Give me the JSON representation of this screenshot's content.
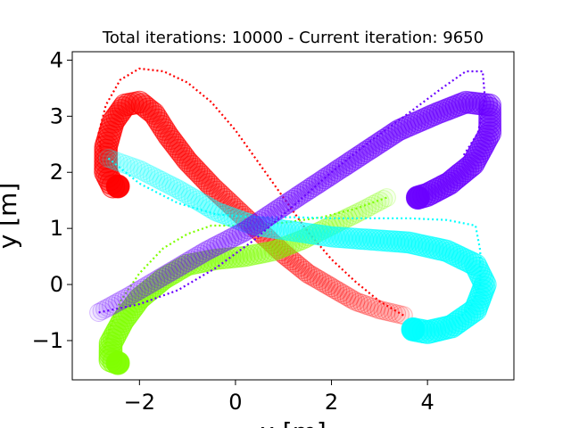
{
  "chart_data": {
    "type": "scatter",
    "title": "Total iterations: 10000 - Current iteration: 9650",
    "xlabel": "x [m]",
    "ylabel": "y [m]",
    "xlim": [
      -3.4,
      5.8
    ],
    "ylim": [
      -1.7,
      4.15
    ],
    "xticks": [
      -2,
      0,
      2,
      4
    ],
    "yticks": [
      -1,
      0,
      1,
      2,
      3,
      4
    ],
    "xtick_labels": [
      "−2",
      "0",
      "2",
      "4"
    ],
    "ytick_labels": [
      "−1",
      "0",
      "1",
      "2",
      "3",
      "4"
    ],
    "grid": false,
    "series": [
      {
        "color": "#ff0000",
        "trail": [
          [
            3.5,
            -0.55
          ],
          [
            3.0,
            -0.45
          ],
          [
            2.5,
            -0.3
          ],
          [
            2.0,
            -0.05
          ],
          [
            1.5,
            0.2
          ],
          [
            1.0,
            0.55
          ],
          [
            0.5,
            0.95
          ],
          [
            0.0,
            1.35
          ],
          [
            -0.5,
            1.75
          ],
          [
            -1.0,
            2.2
          ],
          [
            -1.4,
            2.65
          ],
          [
            -1.7,
            3.05
          ],
          [
            -2.0,
            3.25
          ],
          [
            -2.3,
            3.2
          ],
          [
            -2.55,
            2.9
          ],
          [
            -2.7,
            2.45
          ],
          [
            -2.7,
            2.0
          ],
          [
            -2.55,
            1.75
          ],
          [
            -2.45,
            1.75
          ]
        ],
        "path": [
          [
            3.5,
            -0.55
          ],
          [
            3.0,
            -0.3
          ],
          [
            2.5,
            0.05
          ],
          [
            2.0,
            0.45
          ],
          [
            1.5,
            0.95
          ],
          [
            1.0,
            1.55
          ],
          [
            0.5,
            2.15
          ],
          [
            0.0,
            2.75
          ],
          [
            -0.5,
            3.25
          ],
          [
            -1.0,
            3.6
          ],
          [
            -1.5,
            3.8
          ],
          [
            -2.0,
            3.85
          ],
          [
            -2.4,
            3.65
          ],
          [
            -2.7,
            3.2
          ],
          [
            -2.85,
            2.7
          ],
          [
            -2.8,
            2.35
          ]
        ]
      },
      {
        "color": "#7fff00",
        "trail": [
          [
            3.15,
            1.55
          ],
          [
            2.6,
            1.3
          ],
          [
            2.0,
            1.05
          ],
          [
            1.4,
            0.8
          ],
          [
            0.8,
            0.6
          ],
          [
            0.2,
            0.5
          ],
          [
            -0.4,
            0.45
          ],
          [
            -1.0,
            0.35
          ],
          [
            -1.5,
            0.1
          ],
          [
            -2.0,
            -0.25
          ],
          [
            -2.35,
            -0.65
          ],
          [
            -2.6,
            -1.05
          ],
          [
            -2.6,
            -1.35
          ],
          [
            -2.45,
            -1.4
          ]
        ],
        "path": [
          [
            3.15,
            1.55
          ],
          [
            2.5,
            1.35
          ],
          [
            1.8,
            1.2
          ],
          [
            1.0,
            1.1
          ],
          [
            0.2,
            1.05
          ],
          [
            -0.5,
            1.05
          ],
          [
            -1.0,
            0.9
          ],
          [
            -1.5,
            0.65
          ],
          [
            -2.0,
            0.2
          ],
          [
            -2.4,
            -0.3
          ],
          [
            -2.6,
            -0.75
          ],
          [
            -2.75,
            -1.2
          ]
        ]
      },
      {
        "color": "#00ffff",
        "trail": [
          [
            -2.65,
            2.25
          ],
          [
            -2.0,
            2.05
          ],
          [
            -1.2,
            1.7
          ],
          [
            -0.4,
            1.3
          ],
          [
            0.4,
            1.05
          ],
          [
            1.2,
            0.95
          ],
          [
            2.0,
            0.85
          ],
          [
            2.8,
            0.8
          ],
          [
            3.6,
            0.75
          ],
          [
            4.4,
            0.6
          ],
          [
            5.0,
            0.35
          ],
          [
            5.2,
            0.0
          ],
          [
            5.0,
            -0.45
          ],
          [
            4.5,
            -0.75
          ],
          [
            4.0,
            -0.85
          ],
          [
            3.7,
            -0.8
          ]
        ],
        "path": [
          [
            -2.65,
            2.25
          ],
          [
            -2.0,
            1.8
          ],
          [
            -1.2,
            1.45
          ],
          [
            -0.4,
            1.25
          ],
          [
            0.4,
            1.2
          ],
          [
            1.2,
            1.2
          ],
          [
            2.0,
            1.18
          ],
          [
            2.8,
            1.18
          ],
          [
            3.6,
            1.18
          ],
          [
            4.4,
            1.15
          ],
          [
            5.0,
            1.05
          ],
          [
            5.1,
            0.6
          ],
          [
            5.1,
            0.0
          ],
          [
            4.9,
            -0.4
          ],
          [
            4.6,
            -0.65
          ]
        ]
      },
      {
        "color": "#6a00ff",
        "trail": [
          [
            -2.85,
            -0.5
          ],
          [
            -2.2,
            -0.2
          ],
          [
            -1.4,
            0.2
          ],
          [
            -0.6,
            0.6
          ],
          [
            0.2,
            0.95
          ],
          [
            1.0,
            1.4
          ],
          [
            1.8,
            1.85
          ],
          [
            2.6,
            2.3
          ],
          [
            3.4,
            2.75
          ],
          [
            4.2,
            3.05
          ],
          [
            4.8,
            3.25
          ],
          [
            5.3,
            3.2
          ],
          [
            5.3,
            2.7
          ],
          [
            4.95,
            2.15
          ],
          [
            4.45,
            1.8
          ],
          [
            4.0,
            1.6
          ],
          [
            3.8,
            1.55
          ]
        ],
        "path": [
          [
            -2.85,
            -0.5
          ],
          [
            -2.0,
            -0.35
          ],
          [
            -1.2,
            -0.1
          ],
          [
            -0.4,
            0.3
          ],
          [
            0.4,
            0.8
          ],
          [
            1.2,
            1.4
          ],
          [
            2.0,
            2.0
          ],
          [
            2.8,
            2.55
          ],
          [
            3.6,
            3.05
          ],
          [
            4.3,
            3.5
          ],
          [
            4.8,
            3.8
          ],
          [
            5.15,
            3.8
          ],
          [
            5.2,
            3.3
          ],
          [
            5.05,
            2.7
          ],
          [
            4.75,
            2.3
          ]
        ]
      }
    ]
  }
}
